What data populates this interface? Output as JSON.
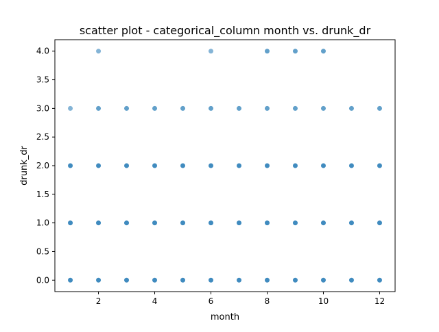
{
  "chart_data": {
    "type": "scatter",
    "title": "scatter plot - categorical_column month vs. drunk_dr",
    "xlabel": "month",
    "ylabel": "drunk_dr",
    "xlim": [
      0.45,
      12.55
    ],
    "ylim": [
      -0.2,
      4.2
    ],
    "xticks": [
      2,
      4,
      6,
      8,
      10,
      12
    ],
    "xtick_labels": [
      "2",
      "4",
      "6",
      "8",
      "10",
      "12"
    ],
    "yticks": [
      0,
      0.5,
      1,
      1.5,
      2,
      2.5,
      3,
      3.5,
      4
    ],
    "ytick_labels": [
      "0.0",
      "0.5",
      "1.0",
      "1.5",
      "2.0",
      "2.5",
      "3.0",
      "3.5",
      "4.0"
    ],
    "grid": false,
    "marker_color": "#1f77b4",
    "series": [
      {
        "points": [
          {
            "x": 1,
            "y": 0,
            "weight": "dense"
          },
          {
            "x": 1,
            "y": 1,
            "weight": "dense"
          },
          {
            "x": 1,
            "y": 2,
            "weight": "dense"
          },
          {
            "x": 1,
            "y": 3,
            "weight": "sparse"
          },
          {
            "x": 2,
            "y": 0,
            "weight": "dense"
          },
          {
            "x": 2,
            "y": 1,
            "weight": "dense"
          },
          {
            "x": 2,
            "y": 2,
            "weight": "dense"
          },
          {
            "x": 2,
            "y": 3,
            "weight": "medium"
          },
          {
            "x": 2,
            "y": 4,
            "weight": "sparse"
          },
          {
            "x": 3,
            "y": 0,
            "weight": "dense"
          },
          {
            "x": 3,
            "y": 1,
            "weight": "dense"
          },
          {
            "x": 3,
            "y": 2,
            "weight": "dense"
          },
          {
            "x": 3,
            "y": 3,
            "weight": "medium"
          },
          {
            "x": 4,
            "y": 0,
            "weight": "dense"
          },
          {
            "x": 4,
            "y": 1,
            "weight": "dense"
          },
          {
            "x": 4,
            "y": 2,
            "weight": "dense"
          },
          {
            "x": 4,
            "y": 3,
            "weight": "medium"
          },
          {
            "x": 5,
            "y": 0,
            "weight": "dense"
          },
          {
            "x": 5,
            "y": 1,
            "weight": "dense"
          },
          {
            "x": 5,
            "y": 2,
            "weight": "dense"
          },
          {
            "x": 5,
            "y": 3,
            "weight": "medium"
          },
          {
            "x": 6,
            "y": 0,
            "weight": "dense"
          },
          {
            "x": 6,
            "y": 1,
            "weight": "dense"
          },
          {
            "x": 6,
            "y": 2,
            "weight": "dense"
          },
          {
            "x": 6,
            "y": 3,
            "weight": "medium"
          },
          {
            "x": 6,
            "y": 4,
            "weight": "sparse"
          },
          {
            "x": 7,
            "y": 0,
            "weight": "dense"
          },
          {
            "x": 7,
            "y": 1,
            "weight": "dense"
          },
          {
            "x": 7,
            "y": 2,
            "weight": "dense"
          },
          {
            "x": 7,
            "y": 3,
            "weight": "medium"
          },
          {
            "x": 8,
            "y": 0,
            "weight": "dense"
          },
          {
            "x": 8,
            "y": 1,
            "weight": "dense"
          },
          {
            "x": 8,
            "y": 2,
            "weight": "dense"
          },
          {
            "x": 8,
            "y": 3,
            "weight": "medium"
          },
          {
            "x": 8,
            "y": 4,
            "weight": "medium"
          },
          {
            "x": 9,
            "y": 0,
            "weight": "dense"
          },
          {
            "x": 9,
            "y": 1,
            "weight": "dense"
          },
          {
            "x": 9,
            "y": 2,
            "weight": "dense"
          },
          {
            "x": 9,
            "y": 3,
            "weight": "medium"
          },
          {
            "x": 9,
            "y": 4,
            "weight": "medium"
          },
          {
            "x": 10,
            "y": 0,
            "weight": "dense"
          },
          {
            "x": 10,
            "y": 1,
            "weight": "dense"
          },
          {
            "x": 10,
            "y": 2,
            "weight": "dense"
          },
          {
            "x": 10,
            "y": 3,
            "weight": "medium"
          },
          {
            "x": 10,
            "y": 4,
            "weight": "medium"
          },
          {
            "x": 11,
            "y": 0,
            "weight": "dense"
          },
          {
            "x": 11,
            "y": 1,
            "weight": "dense"
          },
          {
            "x": 11,
            "y": 2,
            "weight": "dense"
          },
          {
            "x": 11,
            "y": 3,
            "weight": "medium"
          },
          {
            "x": 12,
            "y": 0,
            "weight": "dense"
          },
          {
            "x": 12,
            "y": 1,
            "weight": "dense"
          },
          {
            "x": 12,
            "y": 2,
            "weight": "dense"
          },
          {
            "x": 12,
            "y": 3,
            "weight": "medium"
          }
        ]
      }
    ]
  }
}
